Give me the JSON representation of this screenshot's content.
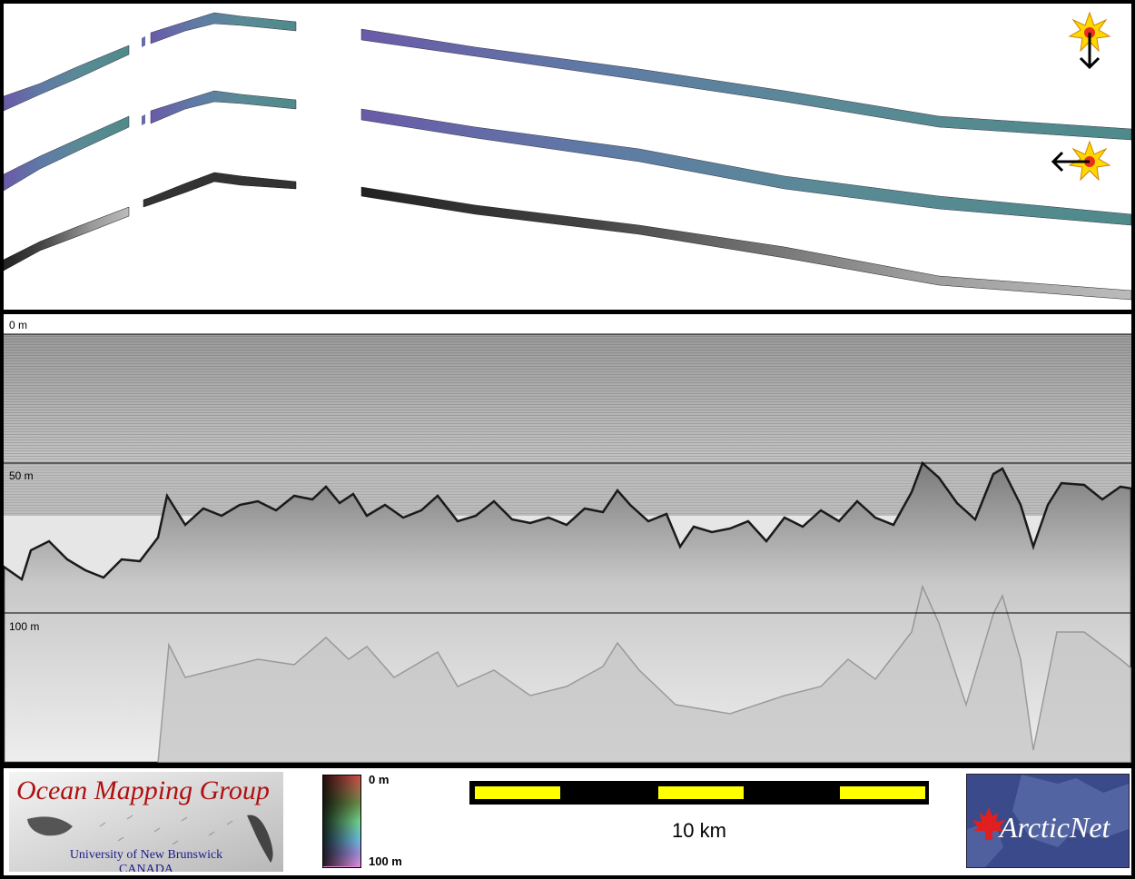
{
  "echogram": {
    "depth_labels": [
      "0 m",
      "50 m",
      "100 m"
    ]
  },
  "legend": {
    "omg_logo": {
      "title": "Ocean Mapping Group",
      "line1": "University of New Brunswick",
      "line2": "CANADA"
    },
    "colorbar": {
      "top_label": "0 m",
      "bottom_label": "100 m"
    },
    "scalebar": {
      "label": "10 km"
    },
    "arcticnet_logo": {
      "text": "ArcticNet"
    }
  },
  "colors": {
    "frame": "#000000",
    "scale_yellow": "#ffff00",
    "logo_red": "#b01010",
    "logo_blue": "#1a1a8a",
    "arctic_bg": "#3a4a8a"
  },
  "icons": [
    "sun-illumination-icon-down",
    "sun-illumination-icon-left",
    "arrow-down-icon",
    "arrow-left-icon"
  ]
}
